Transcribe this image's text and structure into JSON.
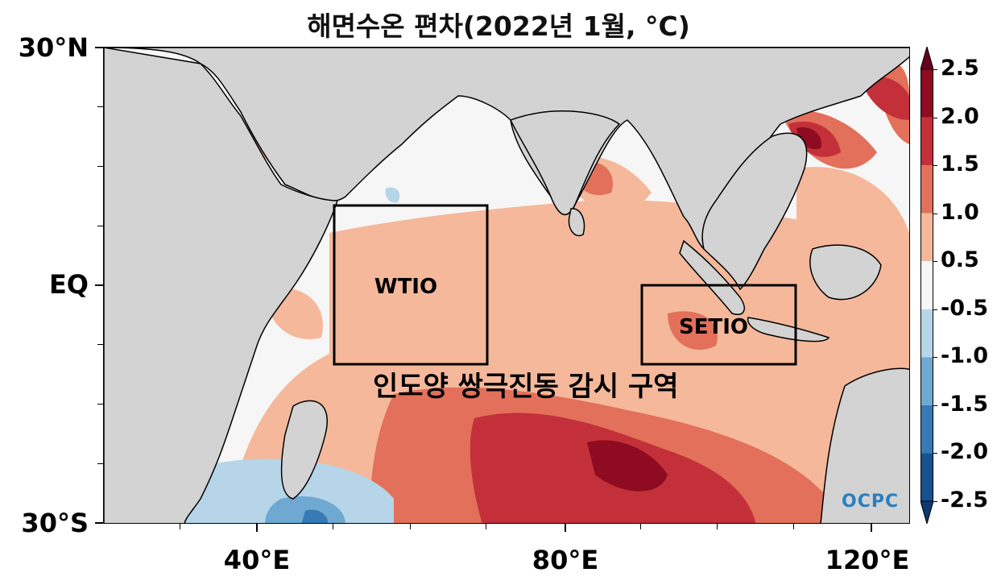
{
  "title": "해면수온 편차(2022년 1월, °C)",
  "lat_labels": {
    "north": "30°N",
    "eq": "EQ",
    "south": "30°S"
  },
  "lon_labels": {
    "l40": "40°E",
    "l80": "80°E",
    "l120": "120°E"
  },
  "boxes": {
    "wtio": {
      "label": "WTIO"
    },
    "setio": {
      "label": "SETIO"
    }
  },
  "region_label": "인도양 쌍극진동 감시 구역",
  "logo": "OCPC",
  "colorbar": {
    "labels": [
      "2.5",
      "2.0",
      "1.5",
      "1.0",
      "0.5",
      "-0.5",
      "-1.0",
      "-1.5",
      "-2.0",
      "-2.5"
    ],
    "colors": [
      "#8e0b21",
      "#c3303a",
      "#e2705a",
      "#f5b89b",
      "#f7f6f6",
      "#b6d5e8",
      "#6fa8d0",
      "#3779b6",
      "#17518f"
    ],
    "over_color": "#67001f",
    "under_color": "#0d3a70"
  },
  "map_colors": {
    "land": "#d3d3d3",
    "neutral": "#f7f6f6",
    "warm1": "#f5b89b",
    "warm2": "#e2705a",
    "warm3": "#c3303a",
    "warm4": "#8e0b21",
    "cool1": "#b6d5e8",
    "cool2": "#6fa8d0",
    "cool3": "#3779b6"
  }
}
